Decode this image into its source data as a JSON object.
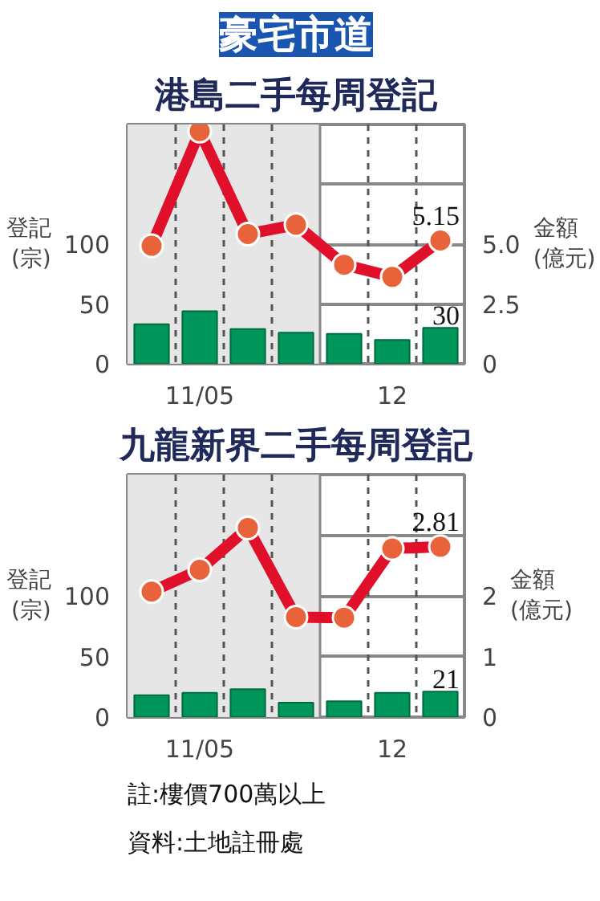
{
  "chart_data": [
    {
      "type": "bar",
      "title": "豪宅市道",
      "subtitle": "港島二手每周登記",
      "ylabel": "登記\n(宗)",
      "y2label": "金額\n(億元)",
      "categories": [
        null,
        "11/05",
        null,
        null,
        null,
        "12",
        null
      ],
      "ylim": [
        0,
        200
      ],
      "yticks": [
        0,
        50,
        100,
        {
          "value": 150,
          "label": null
        }
      ],
      "y2lim": [
        0,
        10
      ],
      "y2ticks": [
        0,
        2.5,
        {
          "value": 5,
          "label": "5.0"
        },
        {
          "value": 7.5,
          "label": null
        }
      ],
      "grid": "y",
      "marker": "circle",
      "series": [
        {
          "color": "#00955a",
          "values": [
            33,
            44,
            29,
            26,
            25,
            20,
            30
          ],
          "value_labels": [
            null,
            null,
            null,
            null,
            null,
            null,
            "30"
          ]
        },
        {
          "type": "line",
          "axis": "y2",
          "color": "#e0102a",
          "values": [
            4.93,
            9.72,
            5.42,
            5.81,
            4.14,
            3.63,
            5.15
          ],
          "value_labels": [
            null,
            null,
            null,
            null,
            null,
            null,
            "5.15"
          ]
        }
      ]
    },
    {
      "type": "bar",
      "title": "九龍新界二手每周登記",
      "ylabel": "登記\n(宗)",
      "y2label": "金額\n(億元)",
      "categories": [
        null,
        "11/05",
        null,
        null,
        null,
        "12",
        null
      ],
      "ylim": [
        0,
        200
      ],
      "yticks": [
        0,
        50,
        100,
        {
          "value": 150,
          "label": null
        }
      ],
      "y2lim": [
        0,
        4
      ],
      "y2ticks": [
        0,
        1,
        2,
        {
          "value": 3,
          "label": null
        }
      ],
      "grid": "y",
      "marker": "circle",
      "series": [
        {
          "color": "#00955a",
          "values": [
            18,
            20,
            23,
            12,
            13,
            20,
            21
          ],
          "value_labels": [
            null,
            null,
            null,
            null,
            null,
            null,
            "21"
          ]
        },
        {
          "type": "line",
          "axis": "y2",
          "color": "#e0102a",
          "values": [
            2.07,
            2.43,
            3.12,
            1.65,
            1.64,
            2.78,
            2.81
          ],
          "value_labels": [
            null,
            null,
            null,
            null,
            null,
            null,
            "2.81"
          ]
        }
      ],
      "annotations": [
        "註:樓價700萬以上",
        "資料:土地註冊處"
      ]
    }
  ]
}
